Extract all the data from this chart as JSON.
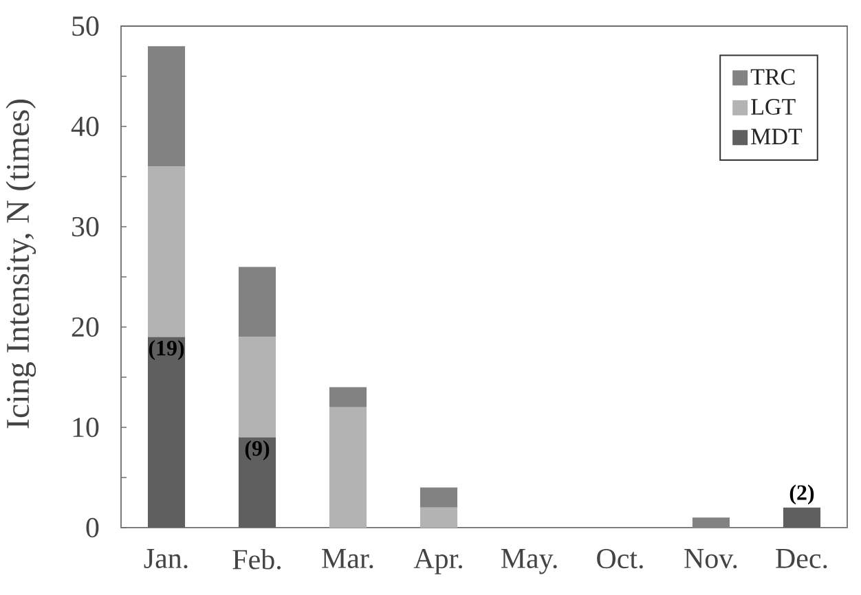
{
  "chart_data": {
    "type": "bar",
    "stacked": true,
    "ylabel": "Icing Intensity, N (times)",
    "categories": [
      "Jan.",
      "Feb.",
      "Mar.",
      "Apr.",
      "May.",
      "Oct.",
      "Nov.",
      "Dec."
    ],
    "series": [
      {
        "name": "MDT",
        "color": "#5f5f5f",
        "values": [
          19,
          9,
          0,
          0,
          0,
          0,
          0,
          2
        ],
        "value_labels": [
          "(19)",
          "(9)",
          null,
          null,
          null,
          null,
          null,
          "(2)"
        ]
      },
      {
        "name": "LGT",
        "color": "#b3b3b3",
        "values": [
          17,
          10,
          12,
          2,
          0,
          0,
          0,
          0
        ]
      },
      {
        "name": "TRC",
        "color": "#828282",
        "values": [
          12,
          7,
          2,
          2,
          0,
          0,
          1,
          0
        ]
      }
    ],
    "ylim": [
      0,
      50
    ],
    "yticks": [
      0,
      {
        "value": 5,
        "label": null
      },
      10,
      {
        "value": 15,
        "label": null
      },
      20,
      {
        "value": 25,
        "label": null
      },
      30,
      {
        "value": 35,
        "label": null
      },
      40,
      {
        "value": 45,
        "label": null
      },
      50
    ],
    "legend": "top right"
  }
}
